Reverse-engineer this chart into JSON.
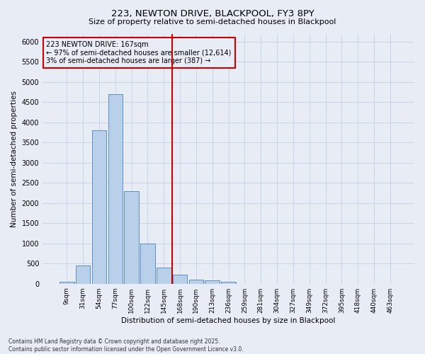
{
  "title1": "223, NEWTON DRIVE, BLACKPOOL, FY3 8PY",
  "title2": "Size of property relative to semi-detached houses in Blackpool",
  "xlabel": "Distribution of semi-detached houses by size in Blackpool",
  "ylabel": "Number of semi-detached properties",
  "categories": [
    "9sqm",
    "31sqm",
    "54sqm",
    "77sqm",
    "100sqm",
    "122sqm",
    "145sqm",
    "168sqm",
    "190sqm",
    "213sqm",
    "236sqm",
    "259sqm",
    "281sqm",
    "304sqm",
    "327sqm",
    "349sqm",
    "372sqm",
    "395sqm",
    "418sqm",
    "440sqm",
    "463sqm"
  ],
  "values": [
    50,
    450,
    3800,
    4700,
    2300,
    1000,
    400,
    220,
    100,
    80,
    50,
    0,
    0,
    0,
    0,
    0,
    0,
    0,
    0,
    0,
    0
  ],
  "bar_color": "#b8d0ea",
  "bar_edge_color": "#5b8ec4",
  "vline_color": "#cc0000",
  "vline_pos": 6.5,
  "annotation_title": "223 NEWTON DRIVE: 167sqm",
  "annotation_line1": "← 97% of semi-detached houses are smaller (12,614)",
  "annotation_line2": "3% of semi-detached houses are larger (387) →",
  "annotation_box_color": "#cc0000",
  "ylim": [
    0,
    6200
  ],
  "yticks": [
    0,
    500,
    1000,
    1500,
    2000,
    2500,
    3000,
    3500,
    4000,
    4500,
    5000,
    5500,
    6000
  ],
  "grid_color": "#c8d4e8",
  "bg_color": "#e8ecf5",
  "footnote1": "Contains HM Land Registry data © Crown copyright and database right 2025.",
  "footnote2": "Contains public sector information licensed under the Open Government Licence v3.0."
}
